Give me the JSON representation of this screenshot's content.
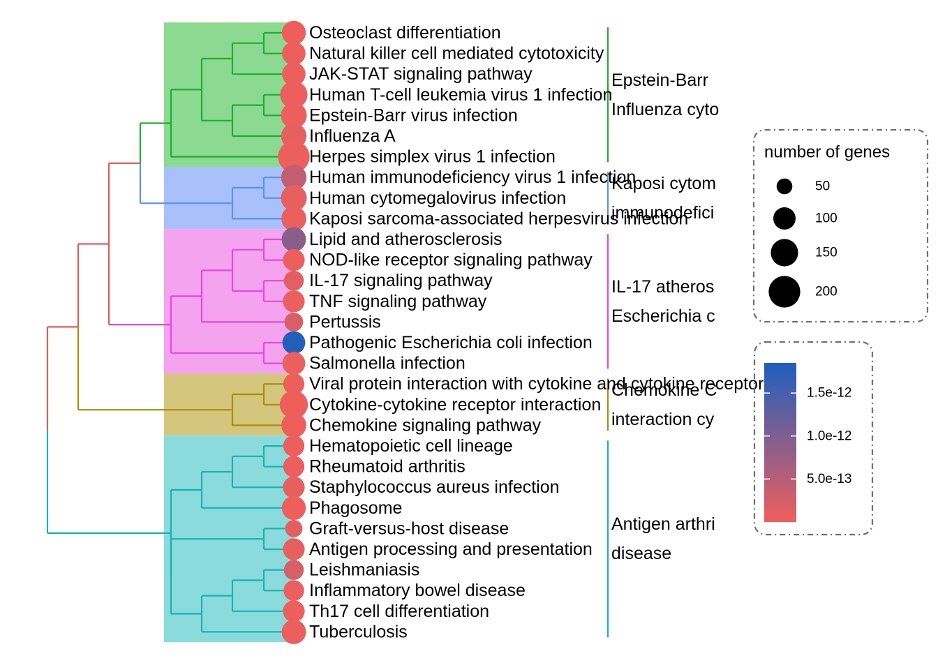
{
  "chart_data": {
    "type": "scatter",
    "subtype": "tree-plot",
    "terms": [
      "Osteoclast differentiation",
      "Natural killer cell mediated cytotoxicity",
      "JAK-STAT signaling pathway",
      "Human T-cell leukemia virus 1 infection",
      "Epstein-Barr virus infection",
      "Influenza A",
      "Herpes simplex virus 1 infection",
      "Human immunodeficiency virus 1 infection",
      "Human cytomegalovirus infection",
      "Kaposi sarcoma-associated herpesvirus infection",
      "Lipid and atherosclerosis",
      "NOD-like receptor signaling pathway",
      "IL-17 signaling pathway",
      "TNF signaling pathway",
      "Pertussis",
      "Pathogenic Escherichia coli infection",
      "Salmonella infection",
      "Viral protein interaction with cytokine and cytokine receptor",
      "Cytokine-cytokine receptor interaction",
      "Chemokine signaling pathway",
      "Hematopoietic cell lineage",
      "Rheumatoid arthritis",
      "Staphylococcus aureus infection",
      "Phagosome",
      "Graft-versus-host disease",
      "Antigen processing and presentation",
      "Leishmaniasis",
      "Inflammatory bowel disease",
      "Th17 cell differentiation",
      "Tuberculosis"
    ],
    "gene_counts": [
      115,
      110,
      110,
      150,
      135,
      130,
      200,
      130,
      135,
      125,
      120,
      95,
      80,
      95,
      70,
      105,
      105,
      90,
      160,
      125,
      90,
      90,
      95,
      115,
      60,
      95,
      80,
      85,
      95,
      120
    ],
    "p_adjust": [
      3e-15,
      5e-15,
      8e-15,
      1e-14,
      1e-14,
      5e-14,
      1e-14,
      4e-13,
      5e-14,
      3e-14,
      9e-13,
      1e-14,
      1e-13,
      2e-14,
      2e-13,
      1.8e-12,
      3e-14,
      1e-14,
      3e-15,
      3e-15,
      2e-14,
      3e-14,
      5e-14,
      1e-14,
      1e-13,
      5e-14,
      2e-13,
      3e-14,
      1e-14,
      1e-14
    ],
    "clusters": [
      {
        "color": "#1ab12e",
        "shade": "#8cd992",
        "terms": [
          0,
          6
        ],
        "label_lines": [
          "Epstein-Barr",
          "Influenza cyto"
        ]
      },
      {
        "color": "#5b8ef8",
        "shade": "#a9c1fb",
        "terms": [
          7,
          9
        ],
        "label_lines": [
          "Kaposi cytom",
          "immunodefici"
        ]
      },
      {
        "color": "#e846e0",
        "shade": "#f4a3ef",
        "terms": [
          10,
          16
        ],
        "label_lines": [
          "IL-17 atheros",
          "Escherichia c"
        ]
      },
      {
        "color": "#a68f0c",
        "shade": "#d5c67d",
        "terms": [
          17,
          19
        ],
        "label_lines": [
          "Chemokine C",
          "interaction cy"
        ]
      },
      {
        "color": "#16b3b8",
        "shade": "#8bdbdc",
        "terms": [
          20,
          29
        ],
        "label_lines": [
          "Antigen arthri",
          "disease"
        ]
      }
    ],
    "size_legend": {
      "title": "number of genes",
      "values": [
        50,
        100,
        150,
        200
      ]
    },
    "color_legend": {
      "ticks": [
        "1.5e-12",
        "1.0e-12",
        "5.0e-13"
      ],
      "tick_values": [
        1.5e-12,
        1e-12,
        5e-13
      ],
      "range": [
        0,
        1.85e-12
      ],
      "low_color": "#ee5f5c",
      "high_color": "#1d5fbd"
    },
    "root_colors": {
      "top": "#e85a57",
      "middle": "#a68f0c"
    }
  }
}
